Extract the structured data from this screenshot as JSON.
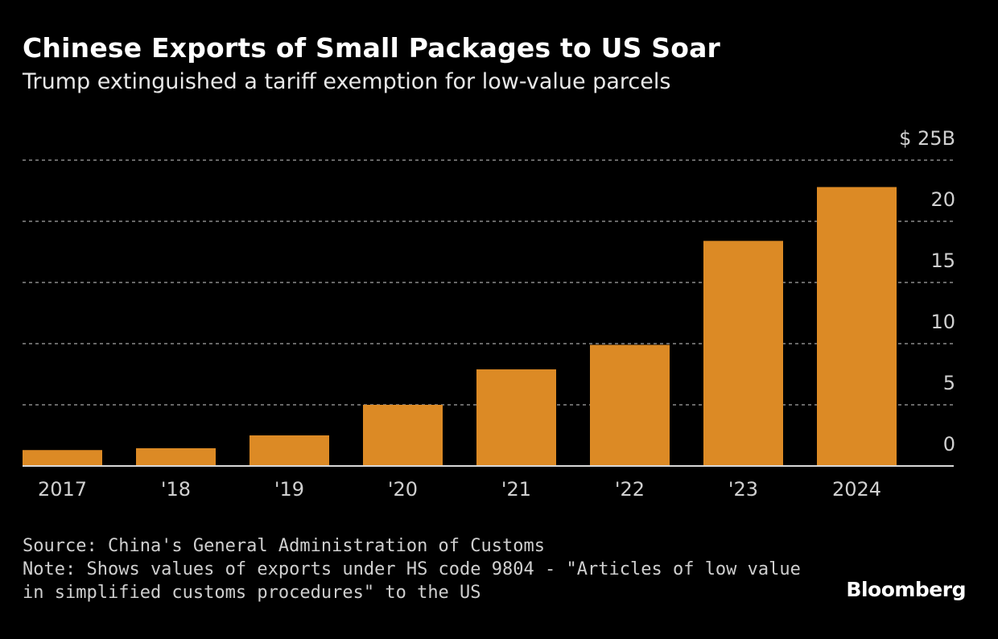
{
  "chart_data": {
    "type": "bar",
    "title": "Chinese Exports of Small Packages to US Soar",
    "subtitle": "Trump extinguished a tariff exemption for low-value parcels",
    "categories": [
      "2017",
      "'18",
      "'19",
      "'20",
      "'21",
      "'22",
      "'23",
      "2024"
    ],
    "values": [
      1.3,
      1.45,
      2.5,
      5.0,
      7.9,
      9.9,
      18.4,
      22.8
    ],
    "unit": "$ billions",
    "ylim": [
      0,
      25
    ],
    "yticks": [
      0,
      5,
      10,
      15,
      20,
      25
    ],
    "ytick_labels": [
      "0",
      "5",
      "10",
      "15",
      "20",
      "$ 25B"
    ],
    "yaxis_side": "right",
    "grid": true,
    "bar_color": "#DC8A25",
    "background": "#000000"
  },
  "footer": {
    "source": "Source: China's General Administration of Customs",
    "note_line1": "Note: Shows values of exports under HS code 9804 - \"Articles of low value",
    "note_line2": "in simplified customs procedures\" to the US",
    "logo": "Bloomberg"
  }
}
